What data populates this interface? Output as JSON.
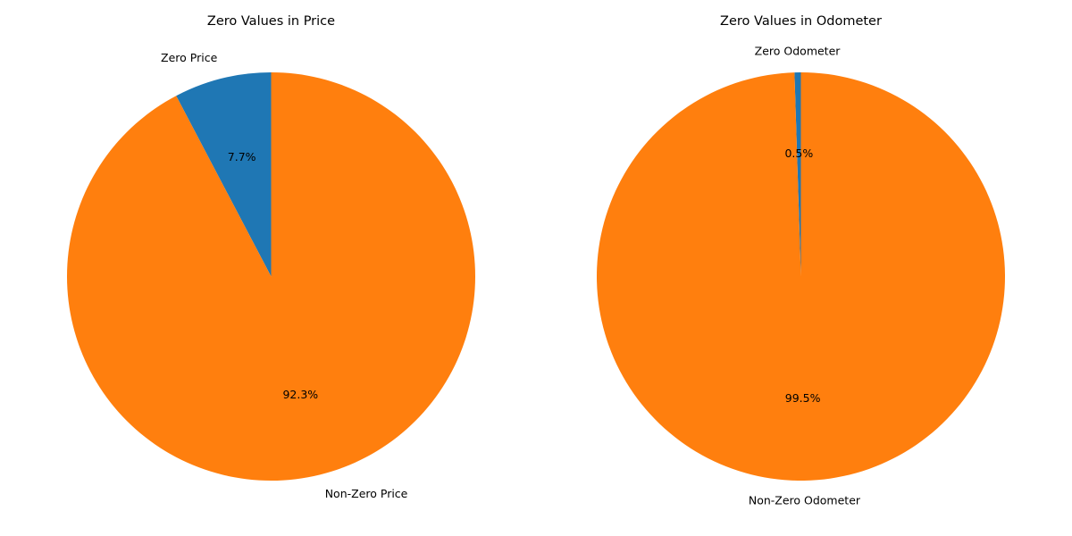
{
  "chart_data": [
    {
      "type": "pie",
      "title": "Zero Values in Price",
      "categories": [
        "Zero Price",
        "Non-Zero Price"
      ],
      "values": [
        7.7,
        92.3
      ],
      "value_labels": [
        "7.7%",
        "92.3%"
      ],
      "colors": [
        "#1f77b4",
        "#ff7f0e"
      ],
      "start_angle": 90,
      "direction": "counterclockwise",
      "legend": "none"
    },
    {
      "type": "pie",
      "title": "Zero Values in Odometer",
      "categories": [
        "Zero Odometer",
        "Non-Zero Odometer"
      ],
      "values": [
        0.5,
        99.5
      ],
      "value_labels": [
        "0.5%",
        "99.5%"
      ],
      "colors": [
        "#1f77b4",
        "#ff7f0e"
      ],
      "start_angle": 90,
      "direction": "counterclockwise",
      "legend": "none"
    }
  ]
}
